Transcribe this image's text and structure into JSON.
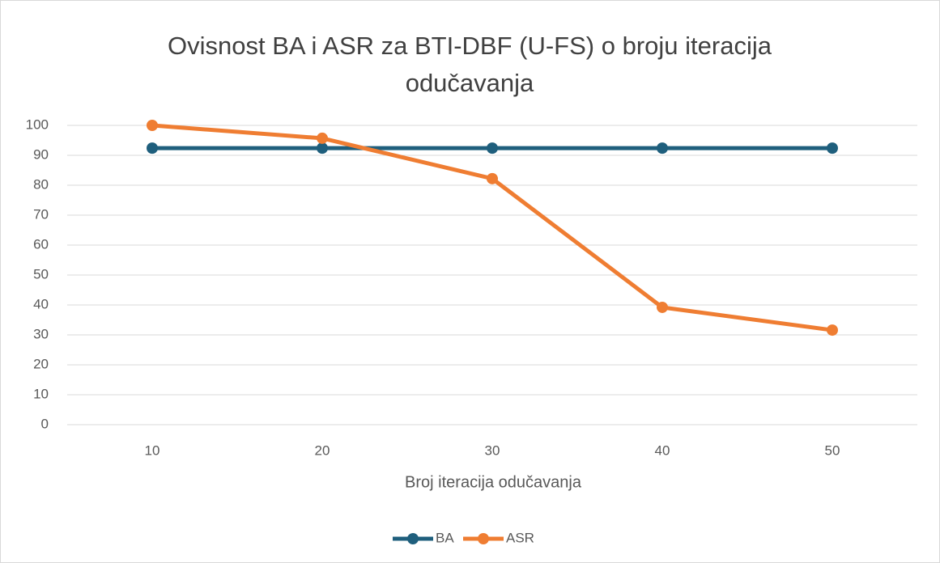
{
  "chart_data": {
    "type": "line",
    "title": "Ovisnost BA i ASR za BTI-DBF (U-FS) o broju iteracija odučavanja",
    "x_label": "Broj iteracija odučavanja",
    "categories": [
      "10",
      "20",
      "30",
      "40",
      "50"
    ],
    "series": [
      {
        "name": "BA",
        "color": "#1f5f7d",
        "values": [
          92.4,
          92.4,
          92.4,
          92.4,
          92.4
        ]
      },
      {
        "name": "ASR",
        "color": "#ef7d32",
        "values": [
          100,
          95.7,
          82.2,
          39.2,
          31.6
        ]
      }
    ],
    "ylim": [
      0,
      100
    ],
    "yticks": [
      0,
      10,
      20,
      30,
      40,
      50,
      60,
      70,
      80,
      90,
      100
    ],
    "grid": true,
    "legend": "bottom"
  }
}
